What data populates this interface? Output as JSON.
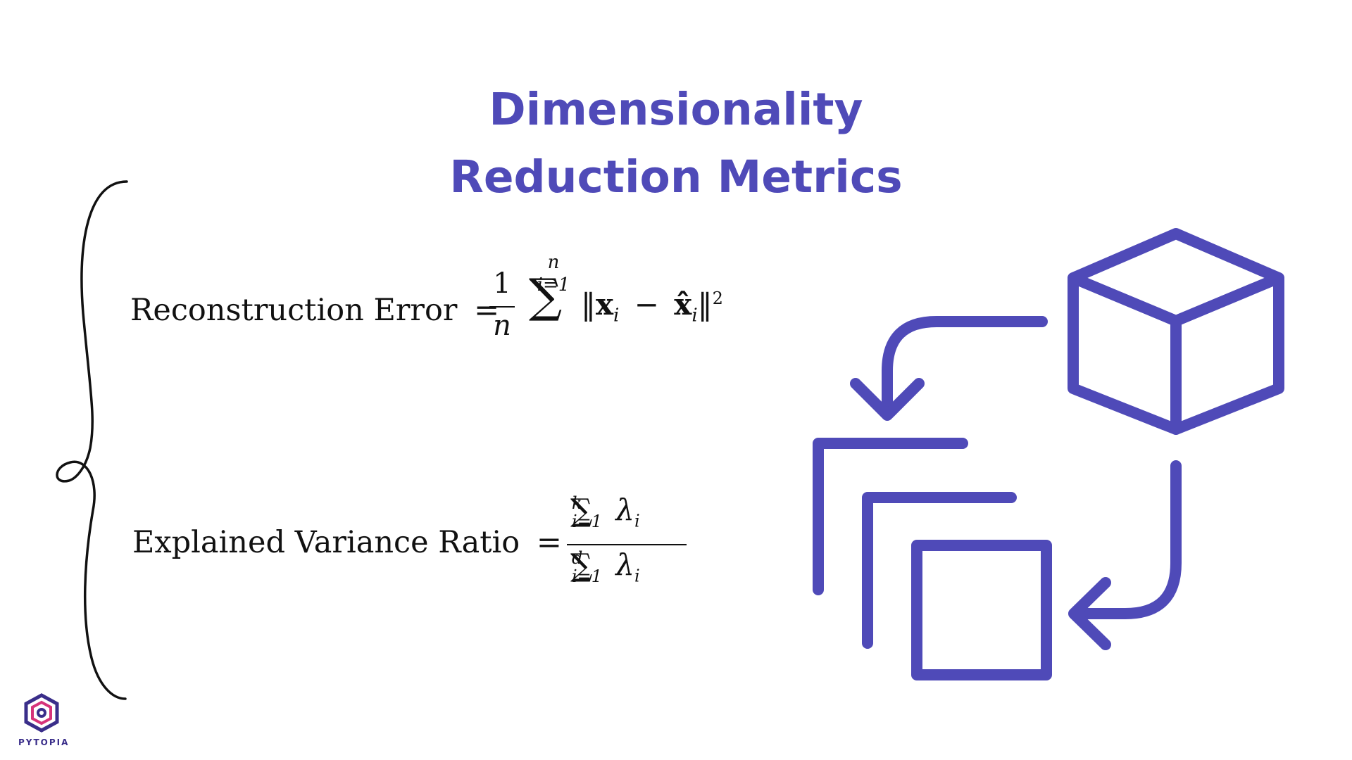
{
  "title": {
    "line1": "Dimensionality",
    "line2": "Reduction Metrics"
  },
  "formulas": {
    "reconstruction": {
      "label": "Reconstruction Error",
      "equals": "=",
      "frac_numerator": "1",
      "frac_denominator": "n",
      "sum_symbol": "∑",
      "sum_upper": "n",
      "sum_lower": "i=1",
      "norm_open": "‖",
      "x_symbol": "x",
      "subscript_i": "i",
      "minus": "−",
      "xhat_symbol": "x̂",
      "norm_close": "‖",
      "exponent": "2"
    },
    "explained_variance": {
      "label": "Explained Variance Ratio",
      "equals": "=",
      "sum_symbol": "∑",
      "num_upper": "k",
      "num_lower": "i=1",
      "den_upper": "d",
      "den_lower": "i=1",
      "lambda": "λ",
      "subscript_i": "i"
    }
  },
  "illustration": {
    "icon": "dimensionality-reduction-icon",
    "color": "#4f4ab8"
  },
  "logo": {
    "icon": "pytopia-hexagon-logo",
    "text": "PYTOPIA"
  },
  "colors": {
    "accent": "#4f4ab8",
    "text": "#111111",
    "background": "#ffffff"
  }
}
